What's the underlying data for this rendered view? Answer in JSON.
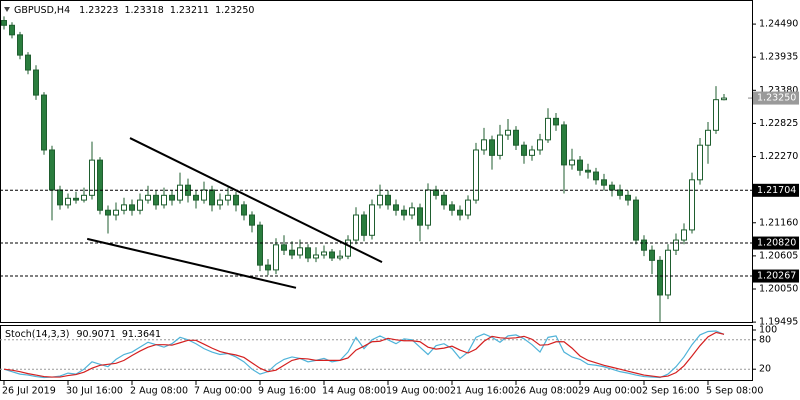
{
  "chart_data": {
    "type": "candlestick",
    "title": "GBPUSD,H4",
    "ohlc_labels": [
      "1.23223",
      "1.23318",
      "1.23211",
      "1.23250"
    ],
    "categories": [
      "26 Jul 2019",
      null,
      null,
      null,
      null,
      null,
      null,
      null,
      "30 Jul 16:00",
      null,
      null,
      null,
      null,
      null,
      null,
      null,
      "2 Aug 08:00",
      null,
      null,
      null,
      null,
      null,
      null,
      null,
      "7 Aug 00:00",
      null,
      null,
      null,
      null,
      null,
      null,
      null,
      "9 Aug 16:00",
      null,
      null,
      null,
      null,
      null,
      null,
      null,
      "14 Aug 08:00",
      null,
      null,
      null,
      null,
      null,
      null,
      null,
      "19 Aug 00:00",
      null,
      null,
      null,
      null,
      null,
      null,
      null,
      "21 Aug 16:00",
      null,
      null,
      null,
      null,
      null,
      null,
      null,
      "26 Aug 08:00",
      null,
      null,
      null,
      null,
      null,
      null,
      null,
      "29 Aug 00:00",
      null,
      null,
      null,
      null,
      null,
      null,
      null,
      "2 Sep 16:00",
      null,
      null,
      null,
      null,
      null,
      null,
      null,
      "5 Sep 08:00",
      null,
      null
    ],
    "candles": [
      [
        1.2455,
        1.2462,
        1.244,
        1.2447
      ],
      [
        1.2447,
        1.2452,
        1.2425,
        1.2431
      ],
      [
        1.2431,
        1.2436,
        1.239,
        1.2397
      ],
      [
        1.2397,
        1.2402,
        1.2365,
        1.2372
      ],
      [
        1.2372,
        1.238,
        1.2322,
        1.233
      ],
      [
        1.233,
        1.2335,
        1.223,
        1.2238
      ],
      [
        1.2238,
        1.2245,
        1.212,
        1.2171
      ],
      [
        1.2171,
        1.2178,
        1.2138,
        1.2146
      ],
      [
        1.2146,
        1.2165,
        1.214,
        1.2157
      ],
      [
        1.2157,
        1.2168,
        1.2148,
        1.2154
      ],
      [
        1.2154,
        1.2175,
        1.215,
        1.2162
      ],
      [
        1.2162,
        1.2252,
        1.2155,
        1.2221
      ],
      [
        1.2221,
        1.2226,
        1.213,
        1.2137
      ],
      [
        1.2137,
        1.2145,
        1.2098,
        1.2129
      ],
      [
        1.2129,
        1.215,
        1.212,
        1.2137
      ],
      [
        1.2137,
        1.2158,
        1.213,
        1.2146
      ],
      [
        1.2146,
        1.2155,
        1.2128,
        1.2137
      ],
      [
        1.2137,
        1.2165,
        1.213,
        1.2154
      ],
      [
        1.2154,
        1.2178,
        1.2148,
        1.2162
      ],
      [
        1.2162,
        1.217,
        1.2138,
        1.2146
      ],
      [
        1.2146,
        1.2175,
        1.214,
        1.2162
      ],
      [
        1.2162,
        1.217,
        1.2145,
        1.2154
      ],
      [
        1.2154,
        1.22,
        1.2148,
        1.2179
      ],
      [
        1.2179,
        1.219,
        1.215,
        1.2162
      ],
      [
        1.2162,
        1.217,
        1.214,
        1.2154
      ],
      [
        1.2154,
        1.2185,
        1.2148,
        1.2171
      ],
      [
        1.2171,
        1.2178,
        1.2135,
        1.2146
      ],
      [
        1.2146,
        1.2165,
        1.2138,
        1.2154
      ],
      [
        1.2154,
        1.2175,
        1.2145,
        1.2162
      ],
      [
        1.2162,
        1.2168,
        1.2135,
        1.2146
      ],
      [
        1.2146,
        1.2152,
        1.212,
        1.2129
      ],
      [
        1.2129,
        1.2135,
        1.21,
        1.2112
      ],
      [
        1.2112,
        1.2118,
        1.2035,
        1.2045
      ],
      [
        1.2045,
        1.2055,
        1.2028,
        1.2037
      ],
      [
        1.2037,
        1.209,
        1.203,
        1.2079
      ],
      [
        1.2079,
        1.2095,
        1.2062,
        1.207
      ],
      [
        1.207,
        1.2085,
        1.2055,
        1.2062
      ],
      [
        1.2062,
        1.2088,
        1.2056,
        1.2074
      ],
      [
        1.2074,
        1.208,
        1.205,
        1.2057
      ],
      [
        1.2057,
        1.2075,
        1.205,
        1.2062
      ],
      [
        1.2062,
        1.2078,
        1.2056,
        1.2067
      ],
      [
        1.2067,
        1.2072,
        1.2052,
        1.2057
      ],
      [
        1.2057,
        1.207,
        1.2053,
        1.206
      ],
      [
        1.206,
        1.2095,
        1.2055,
        1.2087
      ],
      [
        1.2087,
        1.2142,
        1.208,
        1.2129
      ],
      [
        1.2129,
        1.2135,
        1.2085,
        1.2095
      ],
      [
        1.2095,
        1.2155,
        1.2088,
        1.2146
      ],
      [
        1.2146,
        1.218,
        1.214,
        1.2162
      ],
      [
        1.2162,
        1.217,
        1.2138,
        1.2146
      ],
      [
        1.2146,
        1.2155,
        1.2128,
        1.2137
      ],
      [
        1.2137,
        1.2145,
        1.212,
        1.2129
      ],
      [
        1.2129,
        1.215,
        1.2122,
        1.2141
      ],
      [
        1.2141,
        1.2148,
        1.2085,
        1.2112
      ],
      [
        1.2112,
        1.2182,
        1.2105,
        1.2171
      ],
      [
        1.2171,
        1.2178,
        1.2155,
        1.2162
      ],
      [
        1.2162,
        1.2168,
        1.2138,
        1.2146
      ],
      [
        1.2146,
        1.2152,
        1.2128,
        1.2137
      ],
      [
        1.2137,
        1.2145,
        1.212,
        1.2129
      ],
      [
        1.2129,
        1.2162,
        1.2122,
        1.2154
      ],
      [
        1.2154,
        1.225,
        1.2148,
        1.2238
      ],
      [
        1.2238,
        1.2275,
        1.223,
        1.2255
      ],
      [
        1.2255,
        1.2262,
        1.2205,
        1.2229
      ],
      [
        1.2229,
        1.228,
        1.2222,
        1.2263
      ],
      [
        1.2263,
        1.229,
        1.2255,
        1.2271
      ],
      [
        1.2271,
        1.2278,
        1.2238,
        1.2246
      ],
      [
        1.2246,
        1.2252,
        1.2215,
        1.2229
      ],
      [
        1.2229,
        1.2245,
        1.222,
        1.2238
      ],
      [
        1.2238,
        1.2265,
        1.223,
        1.2255
      ],
      [
        1.2255,
        1.2308,
        1.225,
        1.2291
      ],
      [
        1.2291,
        1.23,
        1.227,
        1.228
      ],
      [
        1.228,
        1.2286,
        1.2165,
        1.2213
      ],
      [
        1.2213,
        1.224,
        1.2205,
        1.2221
      ],
      [
        1.2221,
        1.2228,
        1.2195,
        1.2204
      ],
      [
        1.2204,
        1.2215,
        1.219,
        1.2201
      ],
      [
        1.2201,
        1.2208,
        1.218,
        1.2188
      ],
      [
        1.2188,
        1.2198,
        1.217,
        1.2179
      ],
      [
        1.2179,
        1.2185,
        1.216,
        1.2171
      ],
      [
        1.2171,
        1.218,
        1.2155,
        1.2162
      ],
      [
        1.2162,
        1.217,
        1.2145,
        1.2154
      ],
      [
        1.2154,
        1.216,
        1.208,
        1.2087
      ],
      [
        1.2087,
        1.2095,
        1.206,
        1.207
      ],
      [
        1.207,
        1.2078,
        1.203,
        1.2053
      ],
      [
        1.2053,
        1.206,
        1.195,
        1.1995
      ],
      [
        1.1995,
        1.208,
        1.1988,
        1.207
      ],
      [
        1.207,
        1.2098,
        1.2062,
        1.2087
      ],
      [
        1.2087,
        1.2115,
        1.208,
        1.2104
      ],
      [
        1.2104,
        1.22,
        1.2098,
        1.2188
      ],
      [
        1.2188,
        1.2258,
        1.218,
        1.2246
      ],
      [
        1.2246,
        1.2285,
        1.2215,
        1.2271
      ],
      [
        1.2271,
        1.2345,
        1.2265,
        1.23223
      ],
      [
        1.23223,
        1.23318,
        1.23211,
        1.2325
      ]
    ],
    "colors": {
      "up": "#ffffff",
      "down": "#2a7d3e",
      "outline": "#1f5e2f"
    },
    "ylim": [
      1.1948,
      1.2481
    ],
    "yticks": [
      {
        "value": 1.2449,
        "label": "1.24490"
      },
      1.23935,
      {
        "value": 1.2338,
        "label": "1.23380"
      },
      1.22825,
      {
        "value": 1.2227,
        "label": "1.22270"
      },
      {
        "value": 1.2116,
        "label": "1.21160"
      },
      1.20605,
      {
        "value": 1.2005,
        "label": "1.20050"
      },
      1.19495
    ],
    "levels": [
      {
        "value": 1.21704,
        "label": "1.21704"
      },
      {
        "value": 1.2082,
        "label": "1.20820"
      },
      {
        "value": 1.20267,
        "label": "1.20267"
      }
    ],
    "current_price": {
      "value": 1.2325,
      "label": "1.23250"
    },
    "trendlines": [
      {
        "x": [
          15.75,
          47.25
        ],
        "y": [
          1.2258,
          1.205
        ]
      },
      {
        "x": [
          10.4,
          36.5
        ],
        "y": [
          1.2089,
          1.2007
        ]
      }
    ],
    "indicator": {
      "type": "line",
      "title": "Stoch(14,3,3)",
      "ylim": [
        0,
        100
      ],
      "yticks": [
        100,
        80,
        20
      ],
      "levels": [
        80,
        20
      ],
      "series": [
        {
          "color": "#4fb3d9",
          "values": [
            20,
            15,
            10,
            8,
            5,
            3,
            4,
            6,
            12,
            10,
            20,
            35,
            30,
            25,
            40,
            50,
            55,
            65,
            75,
            70,
            65,
            72,
            85,
            80,
            72,
            62,
            55,
            50,
            52,
            45,
            35,
            20,
            10,
            15,
            30,
            40,
            45,
            42,
            35,
            38,
            42,
            35,
            38,
            55,
            85,
            62,
            80,
            88,
            80,
            72,
            82,
            80,
            65,
            50,
            68,
            72,
            62,
            42,
            55,
            85,
            92,
            85,
            75,
            88,
            90,
            82,
            70,
            55,
            85,
            88,
            55,
            45,
            40,
            30,
            28,
            25,
            20,
            15,
            12,
            8,
            5,
            4,
            3,
            10,
            25,
            45,
            70,
            90,
            97,
            98,
            90.9071
          ]
        },
        {
          "color": "#d42020",
          "values": [
            20,
            18,
            15,
            11,
            8,
            5,
            4,
            4,
            7,
            9,
            14,
            22,
            28,
            30,
            32,
            38,
            48,
            57,
            65,
            70,
            70,
            69,
            74,
            79,
            79,
            71,
            63,
            56,
            52,
            49,
            44,
            33,
            22,
            15,
            18,
            28,
            38,
            42,
            41,
            38,
            38,
            38,
            38,
            43,
            59,
            67,
            76,
            77,
            83,
            80,
            78,
            78,
            76,
            65,
            61,
            63,
            67,
            59,
            53,
            61,
            77,
            87,
            84,
            83,
            84,
            87,
            81,
            69,
            70,
            76,
            76,
            63,
            47,
            38,
            33,
            28,
            24,
            20,
            16,
            12,
            8,
            6,
            4,
            6,
            13,
            27,
            47,
            68,
            86,
            95,
            91.3641
          ]
        }
      ]
    }
  }
}
